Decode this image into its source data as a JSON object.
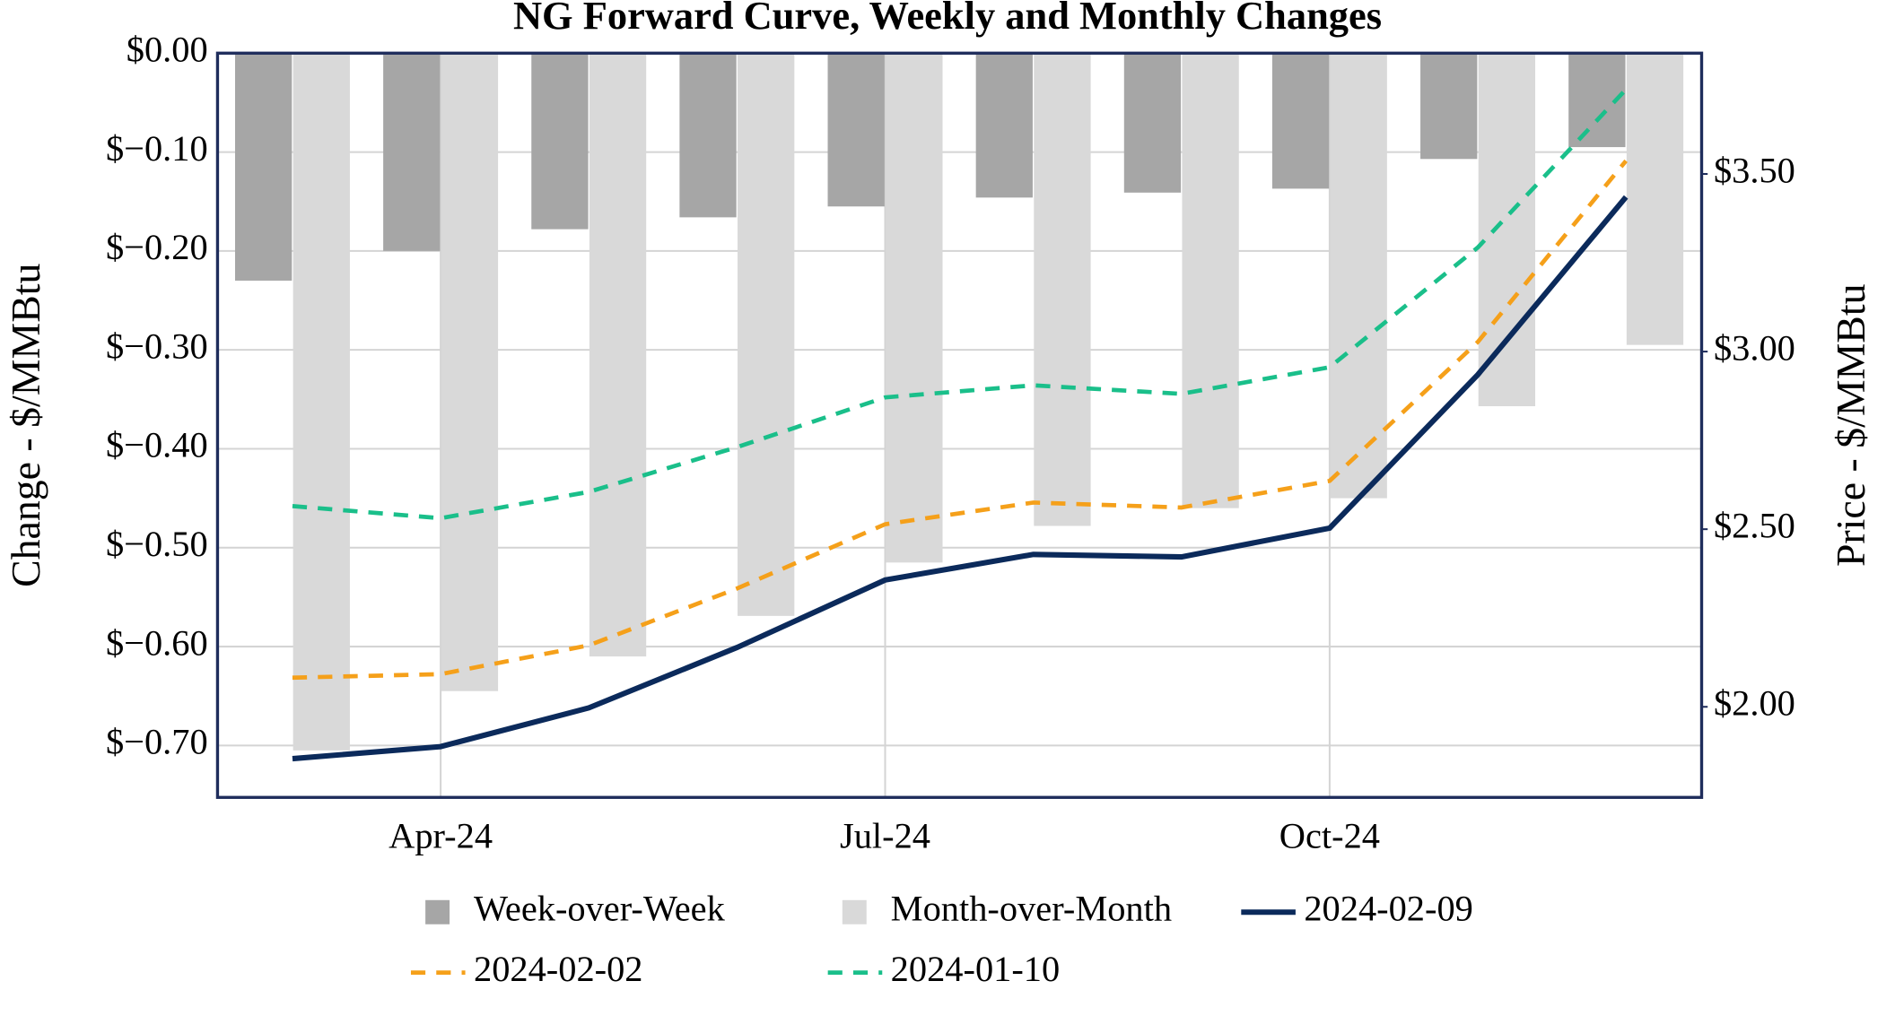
{
  "chart_data": {
    "type": "bar",
    "title": "NG Forward Curve, Weekly and Monthly Changes",
    "ylabel": "Change - $/MMBtu",
    "y2label": "Price - $/MMBtu",
    "categories": [
      null,
      "Apr-24",
      null,
      null,
      "Jul-24",
      null,
      null,
      "Oct-24",
      null,
      null
    ],
    "series": [
      {
        "name": "Week-over-Week",
        "type": "bar",
        "color": "#a6a6a6",
        "values": [
          -0.23,
          -0.2,
          -0.178,
          -0.166,
          -0.155,
          -0.146,
          -0.141,
          -0.137,
          -0.107,
          -0.095
        ]
      },
      {
        "name": "Month-over-Month",
        "type": "bar",
        "color": "#d9d9d9",
        "values": [
          -0.705,
          -0.645,
          -0.61,
          -0.569,
          -0.515,
          -0.478,
          -0.46,
          -0.45,
          -0.357,
          -0.295
        ]
      },
      {
        "name": "2024-02-09",
        "type": "line",
        "axis": "y2",
        "color": "#0b2a5b",
        "dashed": false,
        "values": [
          1.854,
          1.888,
          1.997,
          2.167,
          2.357,
          2.429,
          2.422,
          2.503,
          2.935,
          3.435
        ]
      },
      {
        "name": "2024-02-02",
        "type": "line",
        "axis": "y2",
        "color": "#f5a01a",
        "dashed": true,
        "values": [
          2.082,
          2.092,
          2.173,
          2.333,
          2.514,
          2.575,
          2.561,
          2.636,
          3.027,
          3.537
        ]
      },
      {
        "name": "2024-01-10",
        "type": "line",
        "axis": "y2",
        "color": "#1abf8a",
        "dashed": true,
        "values": [
          2.565,
          2.531,
          2.605,
          2.731,
          2.871,
          2.905,
          2.881,
          2.956,
          3.293,
          3.738
        ]
      }
    ],
    "ylim": [
      -0.7525,
      0
    ],
    "yticks": [
      {
        "value": 0,
        "label": "$0.00"
      },
      {
        "value": -0.1,
        "label": "$−0.10"
      },
      {
        "value": -0.2,
        "label": "$−0.20"
      },
      {
        "value": -0.3,
        "label": "$−0.30"
      },
      {
        "value": -0.4,
        "label": "$−0.40"
      },
      {
        "value": -0.5,
        "label": "$−0.50"
      },
      {
        "value": -0.6,
        "label": "$−0.60"
      },
      {
        "value": -0.7,
        "label": "$−0.70"
      }
    ],
    "y2lim": [
      1.745,
      3.84
    ],
    "y2ticks": [
      {
        "value": 2,
        "label": "$2.00"
      },
      {
        "value": 2.5,
        "label": "$2.50"
      },
      {
        "value": 3,
        "label": "$3.00"
      },
      {
        "value": 3.5,
        "label": "$3.50"
      }
    ],
    "grid": true
  }
}
